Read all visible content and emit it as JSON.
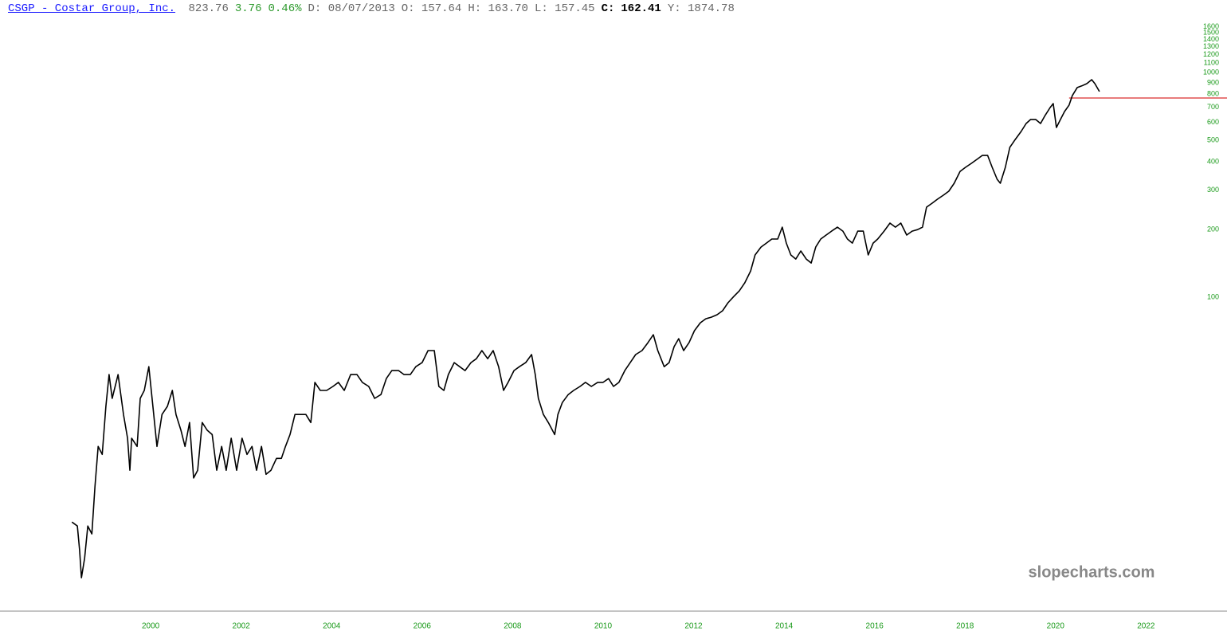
{
  "chart_data": {
    "type": "line",
    "header": {
      "symbol_link": "CSGP - Costar Group, Inc.",
      "quote": [
        {
          "text": "823.76",
          "color": "#666666",
          "bold": false
        },
        {
          "text": "3.76",
          "color": "#2e9a2e",
          "bold": false
        },
        {
          "text": "0.46%",
          "color": "#2e9a2e",
          "bold": false
        },
        {
          "text": "D: 08/07/2013",
          "color": "#666666",
          "bold": false
        },
        {
          "text": "O: 157.64",
          "color": "#666666",
          "bold": false
        },
        {
          "text": "H: 163.70",
          "color": "#666666",
          "bold": false
        },
        {
          "text": "L: 157.45",
          "color": "#666666",
          "bold": false
        },
        {
          "text": "C:",
          "color": "#000000",
          "bold": true
        },
        {
          "text": "162.41",
          "color": "#000000",
          "bold": true
        },
        {
          "text": "Y: 1874.78",
          "color": "#666666",
          "bold": false
        }
      ]
    },
    "watermark": "slopecharts.com",
    "color": "#000000",
    "tick_color": "#1a9a1a",
    "ylog": true,
    "xlim": [
      1996.67,
      2023.79
    ],
    "ylim": [
      4.25,
      1645
    ],
    "xticks": [
      2000,
      2002,
      2004,
      2006,
      2008,
      2010,
      2012,
      2014,
      2016,
      2018,
      2020,
      2022
    ],
    "yticks": [
      100,
      200,
      300,
      400,
      500,
      600,
      700,
      800,
      900,
      1000,
      1100,
      1200,
      1300,
      1400,
      1500,
      1600
    ],
    "hline": {
      "value": 770,
      "from": 2020.3,
      "color": "#e05050"
    },
    "x": [
      1998.26,
      1998.38,
      1998.43,
      1998.47,
      1998.54,
      1998.61,
      1998.7,
      1998.77,
      1998.84,
      1998.93,
      1999.01,
      1999.08,
      1999.15,
      1999.28,
      1999.4,
      1999.49,
      1999.54,
      1999.58,
      1999.7,
      1999.77,
      1999.86,
      1999.96,
      2000.05,
      2000.14,
      2000.25,
      2000.37,
      2000.48,
      2000.56,
      2000.67,
      2000.76,
      2000.86,
      2000.95,
      2001.04,
      2001.14,
      2001.25,
      2001.36,
      2001.46,
      2001.57,
      2001.67,
      2001.78,
      2001.9,
      2002.02,
      2002.13,
      2002.24,
      2002.34,
      2002.45,
      2002.55,
      2002.66,
      2002.78,
      2002.89,
      2002.98,
      2003.08,
      2003.19,
      2003.31,
      2003.43,
      2003.54,
      2003.63,
      2003.75,
      2003.89,
      2004.03,
      2004.15,
      2004.28,
      2004.42,
      2004.56,
      2004.68,
      2004.82,
      2004.95,
      2005.09,
      2005.21,
      2005.33,
      2005.48,
      2005.6,
      2005.74,
      2005.86,
      2006.0,
      2006.13,
      2006.27,
      2006.37,
      2006.48,
      2006.58,
      2006.71,
      2006.83,
      2006.95,
      2007.08,
      2007.2,
      2007.32,
      2007.45,
      2007.57,
      2007.69,
      2007.8,
      2007.9,
      2008.03,
      2008.15,
      2008.29,
      2008.42,
      2008.5,
      2008.57,
      2008.68,
      2008.79,
      2008.93,
      2009.0,
      2009.1,
      2009.23,
      2009.35,
      2009.49,
      2009.61,
      2009.74,
      2009.88,
      2010.0,
      2010.12,
      2010.23,
      2010.35,
      2010.48,
      2010.6,
      2010.72,
      2010.86,
      2010.99,
      2011.11,
      2011.21,
      2011.35,
      2011.46,
      2011.57,
      2011.67,
      2011.78,
      2011.9,
      2012.02,
      2012.15,
      2012.27,
      2012.39,
      2012.52,
      2012.64,
      2012.76,
      2012.89,
      2013.01,
      2013.13,
      2013.26,
      2013.36,
      2013.49,
      2013.61,
      2013.73,
      2013.86,
      2013.96,
      2014.05,
      2014.15,
      2014.26,
      2014.37,
      2014.49,
      2014.6,
      2014.7,
      2014.81,
      2014.93,
      2015.05,
      2015.18,
      2015.3,
      2015.4,
      2015.51,
      2015.63,
      2015.75,
      2015.86,
      2015.97,
      2016.07,
      2016.21,
      2016.34,
      2016.46,
      2016.58,
      2016.71,
      2016.83,
      2016.95,
      2017.06,
      2017.15,
      2017.27,
      2017.39,
      2017.52,
      2017.64,
      2017.76,
      2017.89,
      2018.01,
      2018.14,
      2018.26,
      2018.38,
      2018.5,
      2018.6,
      2018.71,
      2018.78,
      2018.89,
      2018.99,
      2019.11,
      2019.24,
      2019.35,
      2019.45,
      2019.56,
      2019.67,
      2019.77,
      2019.88,
      2019.95,
      2020.02,
      2020.11,
      2020.2,
      2020.3,
      2020.37,
      2020.48,
      2020.58,
      2020.69,
      2020.8,
      2020.87,
      2020.97
    ],
    "values": [
      10.0,
      9.6,
      7.5,
      5.65,
      6.9,
      9.6,
      8.85,
      14.4,
      21.7,
      20.0,
      32.7,
      45.3,
      35.5,
      45.3,
      30.1,
      23.6,
      17.0,
      23.6,
      21.7,
      35.5,
      38.5,
      49.1,
      32.7,
      21.7,
      30.1,
      32.7,
      38.5,
      30.1,
      25.6,
      21.7,
      27.7,
      15.7,
      17.0,
      27.7,
      25.6,
      24.5,
      17.0,
      21.7,
      17.0,
      23.6,
      17.0,
      23.6,
      20.0,
      21.7,
      17.0,
      21.7,
      16.3,
      17.0,
      19.2,
      19.2,
      21.7,
      24.5,
      30.1,
      30.1,
      30.1,
      27.7,
      41.8,
      38.5,
      38.5,
      40.1,
      41.8,
      38.5,
      45.3,
      45.3,
      41.8,
      40.1,
      35.5,
      36.9,
      43.5,
      47.2,
      47.2,
      45.3,
      45.3,
      49.1,
      51.2,
      57.9,
      57.9,
      40.1,
      38.5,
      45.3,
      51.2,
      49.1,
      47.2,
      51.2,
      53.3,
      57.9,
      53.3,
      57.9,
      49.1,
      38.5,
      41.8,
      47.2,
      49.1,
      51.2,
      55.6,
      45.3,
      35.5,
      30.1,
      27.7,
      24.5,
      30.1,
      34.0,
      36.9,
      38.5,
      40.1,
      41.8,
      40.1,
      41.8,
      41.8,
      43.5,
      40.1,
      41.8,
      47.2,
      51.2,
      55.6,
      57.9,
      62.8,
      68.1,
      57.9,
      49.1,
      51.2,
      60.3,
      65.4,
      57.9,
      62.8,
      71.0,
      77.0,
      80.2,
      81.5,
      83.6,
      87.1,
      94.5,
      100.8,
      106.7,
      115.8,
      130.9,
      154.2,
      167.2,
      174.2,
      181.5,
      181.5,
      205.1,
      174.2,
      154.2,
      147.9,
      160.6,
      147.9,
      142.0,
      167.2,
      181.5,
      189.1,
      196.9,
      205.1,
      196.9,
      181.5,
      174.2,
      196.9,
      196.9,
      154.2,
      174.2,
      181.5,
      196.9,
      213.7,
      205.1,
      213.7,
      189.1,
      196.9,
      200.0,
      205.1,
      251.7,
      262.0,
      273.0,
      284.5,
      296.4,
      321.6,
      363.2,
      378.4,
      394.3,
      410.4,
      427.6,
      427.6,
      378.4,
      335.0,
      321.6,
      378.4,
      464.3,
      503.4,
      546.4,
      593.0,
      618.0,
      618.0,
      593.0,
      643.7,
      698.4,
      727.5,
      569.4,
      618.0,
      670.3,
      715.8,
      788.5,
      857.0,
      871.6,
      891.7,
      929.3,
      891.7,
      822.4
    ]
  }
}
